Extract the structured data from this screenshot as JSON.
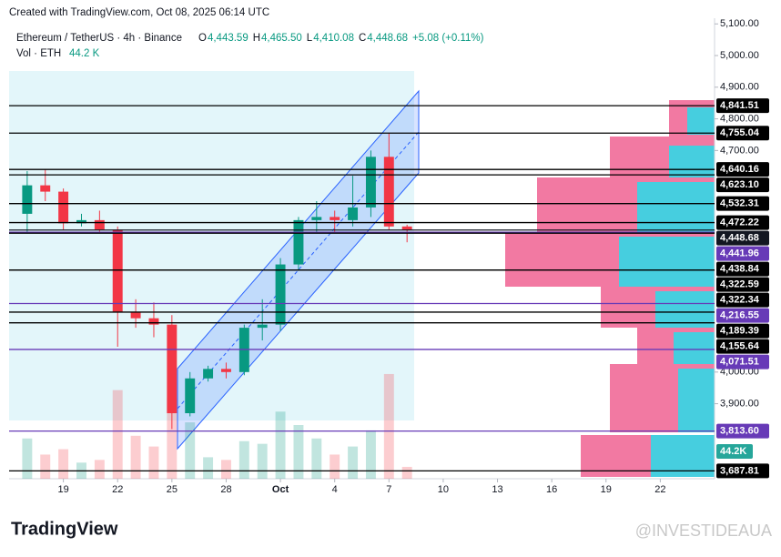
{
  "header": {
    "created": "Created with TradingView.com, Oct 08, 2025 06:14 UTC",
    "ohlc": [
      {
        "key": "O",
        "value": "4,443.59"
      },
      {
        "key": "H",
        "value": "4,465.50"
      },
      {
        "key": "L",
        "value": "4,410.08"
      },
      {
        "key": "C",
        "value": "4,448.68"
      }
    ],
    "change": "+5.08 (+0.11%)",
    "volume_title": "Vol · ETH",
    "volume_value": "44.2 K"
  },
  "footer": {
    "logo": "TradingView",
    "watermark": "@INVESTIDEAUA"
  },
  "chart_data": {
    "type": "candlestick",
    "title": "Ethereum / TetherUS · 4h · Binance",
    "x": [
      "2025-09-17",
      "2025-09-18",
      "2025-09-19",
      "2025-09-20",
      "2025-09-21",
      "2025-09-22",
      "2025-09-23",
      "2025-09-24",
      "2025-09-25",
      "2025-09-26",
      "2025-09-27",
      "2025-09-28",
      "2025-09-29",
      "2025-09-30",
      "2025-10-01",
      "2025-10-02",
      "2025-10-03",
      "2025-10-04",
      "2025-10-05",
      "2025-10-06",
      "2025-10-07",
      "2025-10-08"
    ],
    "open": [
      4500,
      4590,
      4570,
      4470,
      4480,
      4450,
      4190,
      4170,
      4150,
      3870,
      3980,
      4010,
      4000,
      4140,
      4150,
      4340,
      4480,
      4490,
      4480,
      4520,
      4680,
      4460
    ],
    "high": [
      4635,
      4640,
      4580,
      4500,
      4510,
      4460,
      4230,
      4220,
      4180,
      4000,
      4020,
      4030,
      4150,
      4230,
      4360,
      4490,
      4540,
      4510,
      4620,
      4700,
      4755,
      4465.5
    ],
    "low": [
      4440,
      4540,
      4450,
      4460,
      4440,
      4080,
      4140,
      4110,
      3820,
      3860,
      3970,
      3980,
      3990,
      4100,
      4130,
      4320,
      4440,
      4440,
      4460,
      4490,
      4450,
      4410
    ],
    "close": [
      4590,
      4570,
      4470,
      4480,
      4450,
      4190,
      4170,
      4150,
      3870,
      3980,
      4010,
      4000,
      4140,
      4150,
      4340,
      4480,
      4490,
      4480,
      4520,
      4680,
      4460,
      4448.68
    ],
    "volume": [
      150,
      90,
      110,
      60,
      70,
      330,
      160,
      120,
      300,
      210,
      80,
      70,
      140,
      130,
      250,
      200,
      150,
      90,
      120,
      180,
      390,
      44.2
    ],
    "volume_ylim": [
      0,
      400
    ],
    "volume_label": {
      "value": 44.2,
      "label": "44.2K"
    },
    "up_color": "#089981",
    "down_color": "#f23645",
    "xlim": [
      "2025-09-16",
      "2025-10-25"
    ],
    "xticks": [
      {
        "value": "2025-09-19",
        "label": "19"
      },
      {
        "value": "2025-09-22",
        "label": "22"
      },
      {
        "value": "2025-09-25",
        "label": "25"
      },
      {
        "value": "2025-09-28",
        "label": "28"
      },
      {
        "value": "2025-10-01",
        "label": "Oct"
      },
      {
        "value": "2025-10-04",
        "label": "4"
      },
      {
        "value": "2025-10-07",
        "label": "7"
      },
      {
        "value": "2025-10-10",
        "label": "10"
      },
      {
        "value": "2025-10-13",
        "label": "13"
      },
      {
        "value": "2025-10-16",
        "label": "16"
      },
      {
        "value": "2025-10-19",
        "label": "19"
      },
      {
        "value": "2025-10-22",
        "label": "22"
      }
    ],
    "ylim": [
      3663,
      5118
    ],
    "yticks": [
      {
        "value": 5100,
        "label": "5,100.00"
      },
      {
        "value": 5000,
        "label": "5,000.00"
      },
      {
        "value": 4900,
        "label": "4,900.00"
      },
      {
        "value": 4800,
        "label": "4,800.00"
      },
      {
        "value": 4700,
        "label": "4,700.00"
      },
      {
        "value": 4000,
        "label": "4,000.00"
      },
      {
        "value": 3900,
        "label": "3,900.00"
      }
    ],
    "levels": [
      {
        "value": 4841.51,
        "label": "4,841.51",
        "color": "#000000"
      },
      {
        "value": 4755.04,
        "label": "4,755.04",
        "color": "#000000"
      },
      {
        "value": 4640.16,
        "label": "4,640.16",
        "color": "#000000"
      },
      {
        "value": 4623.1,
        "label": "4,623.10",
        "color": "#000000"
      },
      {
        "value": 4532.31,
        "label": "4,532.31",
        "color": "#000000"
      },
      {
        "value": 4472.22,
        "label": "4,472.22",
        "color": "#000000"
      },
      {
        "value": 4448.68,
        "label": "4,448.68",
        "color": "#131722"
      },
      {
        "value": 4441.96,
        "label": "4,441.96",
        "color": "#673ab7"
      },
      {
        "value": 4438.84,
        "label": "4,438.84",
        "color": "#000000"
      },
      {
        "value": 4322.59,
        "label": "4,322.59",
        "color": "#000000"
      },
      {
        "value": 4322.34,
        "label": "4,322.34",
        "color": "#000000"
      },
      {
        "value": 4216.55,
        "label": "4,216.55",
        "color": "#673ab7"
      },
      {
        "value": 4189.39,
        "label": "4,189.39",
        "color": "#000000"
      },
      {
        "value": 4155.64,
        "label": "4,155.64",
        "color": "#000000"
      },
      {
        "value": 4071.51,
        "label": "4,071.51",
        "color": "#673ab7"
      },
      {
        "value": 3813.6,
        "label": "3,813.60",
        "color": "#673ab7"
      },
      {
        "value": 3687.81,
        "label": "3,687.81",
        "color": "#000000"
      }
    ]
  }
}
